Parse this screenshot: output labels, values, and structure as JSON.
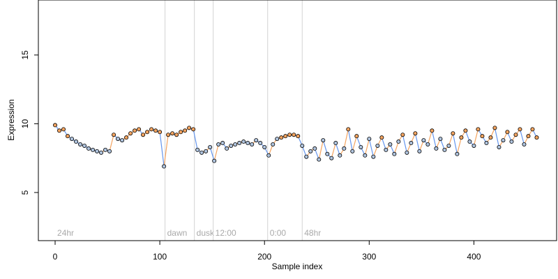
{
  "chart_data": {
    "type": "scatter",
    "title": "",
    "xlabel": "Sample index",
    "ylabel": "Expression",
    "xlim": [
      -16,
      479
    ],
    "ylim": [
      1.5,
      19.0
    ],
    "xticks": [
      0,
      100,
      200,
      300,
      400
    ],
    "xtick_labels": [
      "0",
      "100",
      "200",
      "300",
      "400"
    ],
    "yticks": [
      5,
      10,
      15
    ],
    "ytick_labels": [
      "5",
      "10",
      "15"
    ],
    "grid": false,
    "legend": "none",
    "colors": {
      "point_fill_high": "#f4a460",
      "point_fill_low": "#b0c4de",
      "point_edge": "#000000",
      "segment_up": "#f4a460",
      "segment_down": "#6495ed",
      "phase_line": "#d3d3d3",
      "phase_text": "#a9a9a9"
    },
    "phase_markers": [
      {
        "x": 0,
        "label": "24hr",
        "line": false
      },
      {
        "x": 105,
        "label": "dawn",
        "line": true
      },
      {
        "x": 133,
        "label": "dusk",
        "line": true
      },
      {
        "x": 151,
        "label": "12:00",
        "line": true
      },
      {
        "x": 203,
        "label": "0:00",
        "line": true
      },
      {
        "x": 236,
        "label": "48hr",
        "line": true
      }
    ],
    "series": [
      {
        "x": [
          0,
          4,
          8,
          12,
          16,
          20,
          24,
          28,
          32,
          36,
          40,
          44,
          48,
          52,
          56,
          60,
          64,
          68,
          72,
          76,
          80,
          84,
          88,
          92,
          96,
          100,
          104,
          108,
          112,
          116,
          120,
          124,
          128,
          132,
          136,
          140,
          144,
          148,
          152,
          156,
          160,
          164,
          168,
          172,
          176,
          180,
          184,
          188,
          192,
          196,
          200,
          204,
          208,
          212,
          216,
          220,
          224,
          228,
          232,
          236,
          240,
          244,
          248,
          252,
          256,
          260,
          264,
          268,
          272,
          276,
          280,
          284,
          288,
          292,
          296,
          300,
          304,
          308,
          312,
          316,
          320,
          324,
          328,
          332,
          336,
          340,
          344,
          348,
          352,
          356,
          360,
          364,
          368,
          372,
          376,
          380,
          384,
          388,
          392,
          396,
          400,
          404,
          408,
          412,
          416,
          420,
          424,
          428,
          432,
          436,
          440,
          444,
          448,
          452,
          456,
          460
        ],
        "y": [
          9.9,
          9.5,
          9.6,
          9.1,
          8.9,
          8.7,
          8.5,
          8.4,
          8.2,
          8.1,
          8.0,
          7.9,
          8.1,
          8.0,
          9.2,
          8.9,
          8.8,
          9.0,
          9.3,
          9.5,
          9.6,
          9.2,
          9.4,
          9.6,
          9.5,
          9.4,
          6.9,
          9.2,
          9.3,
          9.2,
          9.4,
          9.5,
          9.7,
          9.6,
          8.1,
          7.9,
          8.0,
          8.3,
          7.3,
          8.5,
          8.6,
          8.2,
          8.4,
          8.5,
          8.6,
          8.7,
          8.6,
          8.5,
          8.8,
          8.6,
          8.3,
          7.7,
          8.5,
          8.9,
          9.0,
          9.1,
          9.2,
          9.2,
          9.1,
          8.4,
          7.6,
          8.0,
          8.2,
          7.4,
          8.8,
          7.8,
          7.5,
          8.6,
          7.7,
          8.2,
          9.6,
          8.0,
          9.1,
          8.3,
          7.7,
          8.9,
          7.6,
          8.4,
          9.0,
          8.1,
          8.5,
          7.8,
          8.7,
          9.2,
          7.9,
          8.6,
          9.3,
          8.0,
          8.8,
          8.5,
          9.5,
          8.2,
          8.9,
          8.1,
          8.4,
          9.3,
          7.8,
          9.0,
          9.5,
          8.7,
          8.4,
          9.6,
          9.1,
          8.6,
          9.0,
          9.7,
          8.3,
          8.8,
          9.4,
          8.7,
          9.2,
          9.6,
          8.5,
          9.1,
          9.6,
          9.0
        ]
      }
    ]
  }
}
